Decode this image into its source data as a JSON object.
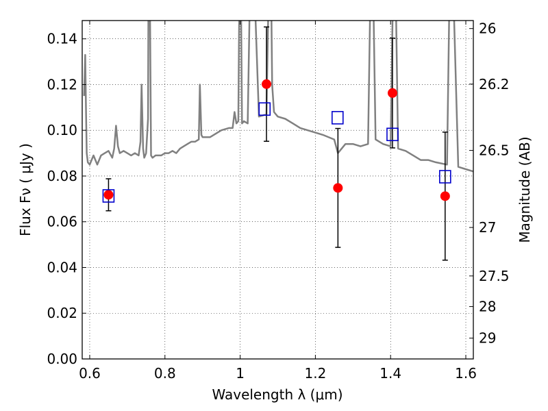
{
  "chart_data": {
    "type": "scatter",
    "title": "",
    "xlabel": "Wavelength  λ (μm)",
    "ylabel": "Flux  Fν  ( μJy )",
    "y2label": "Magnitude (AB)",
    "xlim": [
      0.58,
      1.62
    ],
    "ylim": [
      0.0,
      0.148
    ],
    "grid": true,
    "x_ticks": [
      0.6,
      0.8,
      1.0,
      1.2,
      1.4,
      1.6
    ],
    "x_tick_labels": [
      "0.6",
      "0.8",
      "1",
      "1.2",
      "1.4",
      "1.6"
    ],
    "y_ticks": [
      0.0,
      0.02,
      0.04,
      0.06,
      0.08,
      0.1,
      0.12,
      0.14
    ],
    "y_tick_labels": [
      "0.00",
      "0.02",
      "0.04",
      "0.06",
      "0.08",
      "0.10",
      "0.12",
      "0.14"
    ],
    "y2_ticks": [
      {
        "label": "26",
        "flux": 0.1445
      },
      {
        "label": "26.2",
        "flux": 0.1202
      },
      {
        "label": "26.5",
        "flux": 0.0912
      },
      {
        "label": "27",
        "flux": 0.0575
      },
      {
        "label": "27.5",
        "flux": 0.0363
      },
      {
        "label": "28",
        "flux": 0.0229
      },
      {
        "label": "29",
        "flux": 0.0091
      }
    ],
    "observed": {
      "color": "#ff0000",
      "x": [
        0.65,
        1.07,
        1.26,
        1.405,
        1.545
      ],
      "y": [
        0.0718,
        0.1202,
        0.0748,
        0.1163,
        0.0712
      ],
      "yerr": [
        0.007,
        0.025,
        0.026,
        0.024,
        0.028
      ]
    },
    "model_photometry": {
      "color": "#0000cc",
      "x": [
        0.65,
        1.065,
        1.259,
        1.405,
        1.545
      ],
      "y": [
        0.0713,
        0.1093,
        0.1055,
        0.0982,
        0.0797
      ]
    },
    "template_spectrum": {
      "color": "#808080",
      "x": [
        0.585,
        0.588,
        0.59,
        0.592,
        0.595,
        0.6,
        0.605,
        0.61,
        0.62,
        0.63,
        0.64,
        0.65,
        0.66,
        0.665,
        0.67,
        0.675,
        0.68,
        0.69,
        0.7,
        0.71,
        0.72,
        0.73,
        0.735,
        0.738,
        0.742,
        0.745,
        0.75,
        0.755,
        0.757,
        0.76,
        0.763,
        0.767,
        0.775,
        0.79,
        0.8,
        0.81,
        0.82,
        0.83,
        0.84,
        0.85,
        0.86,
        0.87,
        0.88,
        0.89,
        0.893,
        0.897,
        0.9,
        0.92,
        0.95,
        0.97,
        0.98,
        0.985,
        0.99,
        0.995,
        1.0,
        1.005,
        1.01,
        1.02,
        1.03,
        1.05,
        1.07,
        1.08,
        1.085,
        1.09,
        1.1,
        1.12,
        1.14,
        1.16,
        1.2,
        1.22,
        1.25,
        1.26,
        1.28,
        1.3,
        1.32,
        1.34,
        1.35,
        1.36,
        1.38,
        1.4,
        1.41,
        1.42,
        1.44,
        1.46,
        1.48,
        1.5,
        1.52,
        1.55,
        1.56,
        1.58,
        1.6,
        1.62
      ],
      "y": [
        0.115,
        0.133,
        0.11,
        0.09,
        0.086,
        0.085,
        0.087,
        0.089,
        0.085,
        0.089,
        0.09,
        0.091,
        0.088,
        0.092,
        0.102,
        0.093,
        0.09,
        0.091,
        0.09,
        0.089,
        0.09,
        0.089,
        0.095,
        0.12,
        0.092,
        0.088,
        0.09,
        0.105,
        0.2,
        0.16,
        0.089,
        0.088,
        0.089,
        0.089,
        0.09,
        0.09,
        0.091,
        0.09,
        0.092,
        0.093,
        0.094,
        0.095,
        0.095,
        0.096,
        0.12,
        0.098,
        0.097,
        0.097,
        0.1,
        0.101,
        0.101,
        0.108,
        0.103,
        0.104,
        0.2,
        0.103,
        0.104,
        0.103,
        0.2,
        0.106,
        0.107,
        0.2,
        0.12,
        0.108,
        0.106,
        0.105,
        0.103,
        0.101,
        0.099,
        0.098,
        0.096,
        0.09,
        0.094,
        0.094,
        0.093,
        0.094,
        0.2,
        0.096,
        0.094,
        0.093,
        0.2,
        0.092,
        0.091,
        0.089,
        0.087,
        0.087,
        0.086,
        0.085,
        0.2,
        0.084,
        0.083,
        0.082
      ]
    }
  }
}
